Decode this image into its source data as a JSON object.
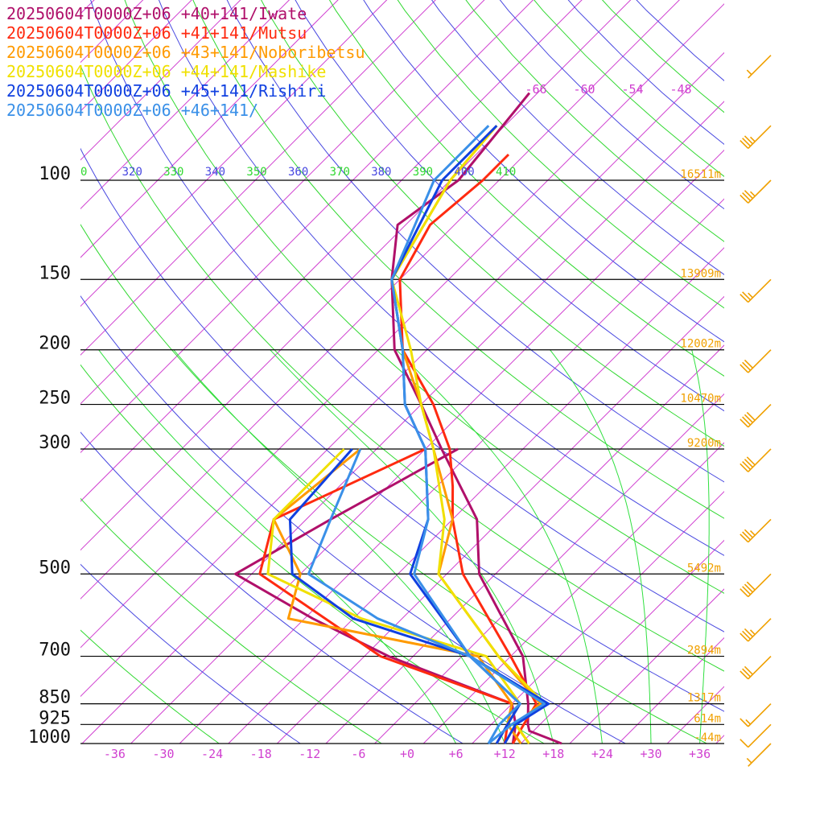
{
  "legend": [
    {
      "label": "20250604T0000Z+06 +40+141/Iwate",
      "color": "#b0106a"
    },
    {
      "label": "20250604T0000Z+06 +41+141/Mutsu",
      "color": "#ff2a10"
    },
    {
      "label": "20250604T0000Z+06 +43+141/Noboribetsu",
      "color": "#ff9a00"
    },
    {
      "label": "20250604T0000Z+06 +44+141/Mashike",
      "color": "#f0e000"
    },
    {
      "label": "20250604T0000Z+06 +45+141/Rishiri",
      "color": "#1040e0"
    },
    {
      "label": "20250604T0000Z+06 +46+141/",
      "color": "#3a90e8"
    }
  ],
  "chart_data": {
    "type": "line",
    "chart_kind": "skew-T log-p diagram",
    "pressure_levels": [
      {
        "p": 100,
        "label": "100",
        "height": "16511m"
      },
      {
        "p": 150,
        "label": "150",
        "height": "13909m"
      },
      {
        "p": 200,
        "label": "200",
        "height": "12002m"
      },
      {
        "p": 250,
        "label": "250",
        "height": "10470m"
      },
      {
        "p": 300,
        "label": "300",
        "height": "9200m"
      },
      {
        "p": 500,
        "label": "500",
        "height": "5492m"
      },
      {
        "p": 700,
        "label": "700",
        "height": "2894m"
      },
      {
        "p": 850,
        "label": "850",
        "height": "1317m"
      },
      {
        "p": 925,
        "label": "925",
        "height": "614m"
      },
      {
        "p": 1000,
        "label": "1000",
        "height": "-44m"
      }
    ],
    "temperature_ticks": [
      "-36",
      "-30",
      "-24",
      "-18",
      "-12",
      "-6",
      "+0",
      "+6",
      "+12",
      "+18",
      "+24",
      "+30",
      "+36"
    ],
    "upper_temperature_labels": [
      "-66",
      "-60",
      "-54",
      "-48"
    ],
    "theta_labels": [
      {
        "text": "0",
        "color": "#30d830"
      },
      {
        "text": "320",
        "color": "#4848e0"
      },
      {
        "text": "330",
        "color": "#30d830"
      },
      {
        "text": "340",
        "color": "#4848e0"
      },
      {
        "text": "350",
        "color": "#30d830"
      },
      {
        "text": "360",
        "color": "#4848e0"
      },
      {
        "text": "370",
        "color": "#30d830"
      },
      {
        "text": "380",
        "color": "#4848e0"
      },
      {
        "text": "390",
        "color": "#30d830"
      },
      {
        "text": "400",
        "color": "#4848e0"
      },
      {
        "text": "410",
        "color": "#30d830"
      }
    ],
    "series": [
      {
        "name": "20250604T0000Z+06 +40+141/Iwate",
        "color": "#b0106a",
        "temperature": [
          [
            1000,
            19.0
          ],
          [
            950,
            13.5
          ],
          [
            925,
            12.5
          ],
          [
            850,
            10.0
          ],
          [
            700,
            3.5
          ],
          [
            500,
            -12.0
          ],
          [
            400,
            -19.0
          ],
          [
            300,
            -32.0
          ],
          [
            250,
            -40.0
          ],
          [
            200,
            -50.0
          ],
          [
            150,
            -59.0
          ],
          [
            120,
            -65.0
          ],
          [
            100,
            -63.0
          ],
          [
            70,
            -65.0
          ]
        ],
        "dewpoint": [
          [
            1000,
            13.0
          ],
          [
            925,
            11.0
          ],
          [
            850,
            8.0
          ],
          [
            700,
            -13.0
          ],
          [
            600,
            -27.0
          ],
          [
            500,
            -42.0
          ],
          [
            400,
            -37.0
          ],
          [
            300,
            -30.0
          ]
        ]
      },
      {
        "name": "20250604T0000Z+06 +41+141/Mutsu",
        "color": "#ff2a10",
        "temperature": [
          [
            1000,
            13.0
          ],
          [
            925,
            12.0
          ],
          [
            850,
            11.0
          ],
          [
            700,
            2.0
          ],
          [
            500,
            -14.0
          ],
          [
            400,
            -22.0
          ],
          [
            350,
            -26.0
          ],
          [
            300,
            -31.0
          ],
          [
            250,
            -38.5
          ],
          [
            200,
            -49.0
          ],
          [
            150,
            -58.0
          ],
          [
            120,
            -61.0
          ],
          [
            100,
            -60.0
          ],
          [
            90,
            -60.0
          ]
        ],
        "dewpoint": [
          [
            1000,
            12.0
          ],
          [
            925,
            10.0
          ],
          [
            850,
            8.0
          ],
          [
            700,
            -14.0
          ],
          [
            500,
            -39.0
          ],
          [
            400,
            -44.0
          ],
          [
            300,
            -34.0
          ]
        ]
      },
      {
        "name": "20250604T0000Z+06 +43+141/Noboribetsu",
        "color": "#ff9a00",
        "temperature": [
          [
            1000,
            15.0
          ],
          [
            925,
            11.0
          ],
          [
            850,
            11.5
          ],
          [
            700,
            0.5
          ],
          [
            500,
            -17.0
          ],
          [
            400,
            -22.0
          ],
          [
            300,
            -33.0
          ],
          [
            250,
            -40.0
          ],
          [
            200,
            -49.0
          ],
          [
            150,
            -59.0
          ],
          [
            100,
            -64.0
          ],
          [
            80,
            -65.0
          ]
        ],
        "dewpoint": [
          [
            1000,
            14.0
          ],
          [
            925,
            10.0
          ],
          [
            850,
            8.0
          ],
          [
            700,
            -2.0
          ],
          [
            600,
            -30.0
          ],
          [
            500,
            -34.0
          ],
          [
            400,
            -44.0
          ],
          [
            300,
            -42.0
          ]
        ]
      },
      {
        "name": "20250604T0000Z+06 +44+141/Mashike",
        "color": "#f0e000",
        "temperature": [
          [
            1000,
            15.0
          ],
          [
            925,
            11.0
          ],
          [
            850,
            12.0
          ],
          [
            700,
            0.5
          ],
          [
            500,
            -17.0
          ],
          [
            400,
            -23.0
          ],
          [
            300,
            -33.0
          ],
          [
            250,
            -40.0
          ],
          [
            200,
            -48.0
          ],
          [
            150,
            -59.0
          ],
          [
            100,
            -64.0
          ],
          [
            80,
            -65.0
          ]
        ],
        "dewpoint": [
          [
            1000,
            11.0
          ],
          [
            925,
            10.0
          ],
          [
            850,
            9.0
          ],
          [
            700,
            -1.0
          ],
          [
            600,
            -21.0
          ],
          [
            500,
            -38.0
          ],
          [
            400,
            -44.0
          ],
          [
            300,
            -44.0
          ]
        ]
      },
      {
        "name": "20250604T0000Z+06 +45+141/Rishiri",
        "color": "#1040e0",
        "temperature": [
          [
            1000,
            12.0
          ],
          [
            925,
            11.0
          ],
          [
            875,
            12.0
          ],
          [
            850,
            12.5
          ],
          [
            700,
            -3.0
          ],
          [
            500,
            -20.5
          ],
          [
            400,
            -25.0
          ],
          [
            300,
            -34.0
          ],
          [
            250,
            -42.0
          ],
          [
            200,
            -49.0
          ],
          [
            150,
            -59.0
          ],
          [
            100,
            -65.0
          ],
          [
            80,
            -65.0
          ]
        ],
        "dewpoint": [
          [
            1000,
            11.0
          ],
          [
            925,
            10.0
          ],
          [
            850,
            9.0
          ],
          [
            700,
            -3.0
          ],
          [
            600,
            -22.0
          ],
          [
            500,
            -35.0
          ],
          [
            400,
            -42.0
          ],
          [
            300,
            -43.0
          ]
        ]
      },
      {
        "name": "20250604T0000Z+06 +46+141/",
        "color": "#3a90e8",
        "temperature": [
          [
            1000,
            10.0
          ],
          [
            925,
            10.5
          ],
          [
            850,
            12.0
          ],
          [
            700,
            -3.0
          ],
          [
            500,
            -20.0
          ],
          [
            400,
            -25.0
          ],
          [
            300,
            -34.0
          ],
          [
            250,
            -42.0
          ],
          [
            200,
            -49.0
          ],
          [
            150,
            -59.0
          ],
          [
            100,
            -66.0
          ],
          [
            80,
            -66.0
          ]
        ],
        "dewpoint": [
          [
            1000,
            10.0
          ],
          [
            925,
            9.0
          ],
          [
            850,
            9.0
          ],
          [
            700,
            -3.0
          ],
          [
            600,
            -19.0
          ],
          [
            500,
            -33.0
          ],
          [
            400,
            -37.0
          ],
          [
            300,
            -42.0
          ]
        ]
      }
    ],
    "wind_barbs": [
      {
        "p": 60,
        "speed_kt": 5,
        "dir": 240
      },
      {
        "p": 80,
        "speed_kt": 35,
        "dir": 240
      },
      {
        "p": 100,
        "speed_kt": 35,
        "dir": 240
      },
      {
        "p": 150,
        "speed_kt": 25,
        "dir": 240
      },
      {
        "p": 200,
        "speed_kt": 30,
        "dir": 240
      },
      {
        "p": 250,
        "speed_kt": 40,
        "dir": 240
      },
      {
        "p": 300,
        "speed_kt": 40,
        "dir": 240
      },
      {
        "p": 400,
        "speed_kt": 35,
        "dir": 240
      },
      {
        "p": 500,
        "speed_kt": 40,
        "dir": 240
      },
      {
        "p": 600,
        "speed_kt": 35,
        "dir": 240
      },
      {
        "p": 700,
        "speed_kt": 30,
        "dir": 240
      },
      {
        "p": 850,
        "speed_kt": 15,
        "dir": 245
      },
      {
        "p": 925,
        "speed_kt": 10,
        "dir": 240
      },
      {
        "p": 1000,
        "speed_kt": 5,
        "dir": 240
      }
    ]
  }
}
